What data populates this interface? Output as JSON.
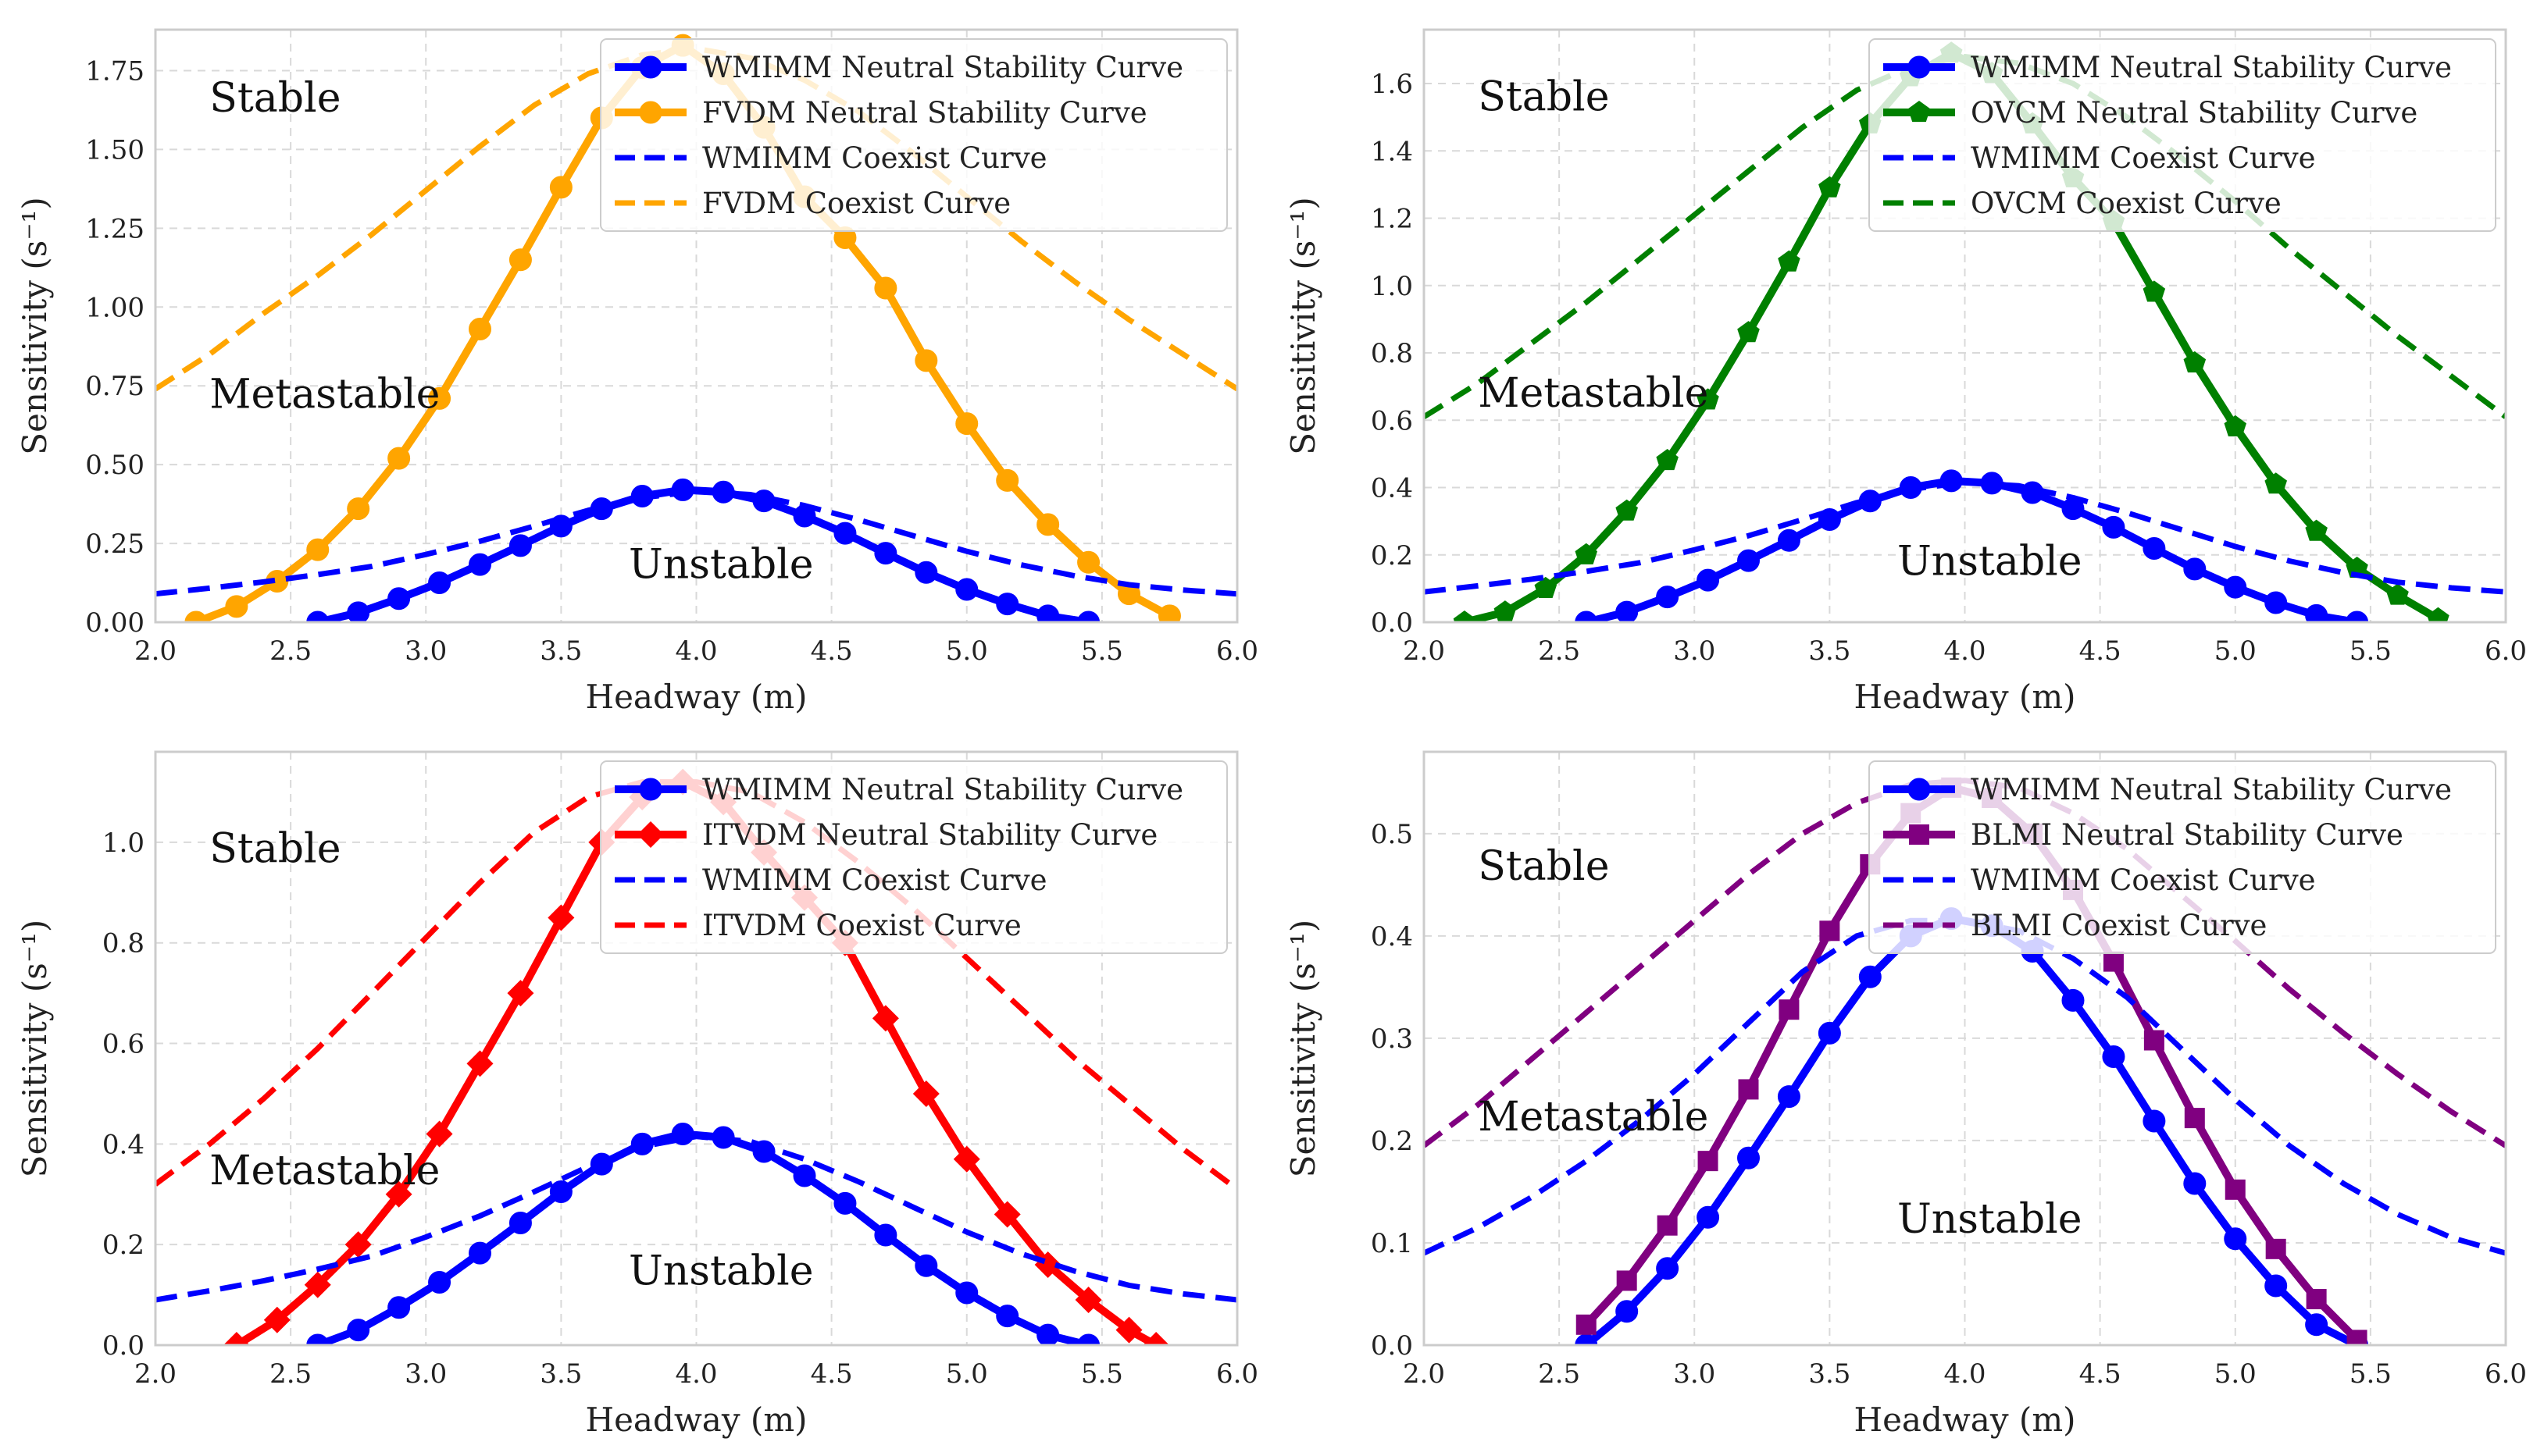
{
  "colors": {
    "wmimm": "#0000ff",
    "fvdm": "#ffa500",
    "ovcm": "#008000",
    "itvdm": "#ff0000",
    "blmi": "#800080",
    "grid": "#d9d9d9",
    "spine": "#cccccc"
  },
  "chart_data": [
    {
      "type": "line",
      "xlabel": "Headway (m)",
      "ylabel": "Sensitivity (s⁻¹)",
      "xlim": [
        2.0,
        6.0
      ],
      "ylim": [
        0,
        1.88
      ],
      "xticks": [
        "2.0",
        "2.5",
        "3.0",
        "3.5",
        "4.0",
        "4.5",
        "5.0",
        "5.5",
        "6.0"
      ],
      "yticks": [
        "0.00",
        "0.25",
        "0.50",
        "0.75",
        "1.00",
        "1.25",
        "1.50",
        "1.75"
      ],
      "region_labels": [
        "Stable",
        "Metastable",
        "Unstable"
      ],
      "series": [
        {
          "name": "WMIMM Neutral Stability Curve",
          "color": "wmimm",
          "style": "solid",
          "marker": "circle",
          "x": [
            2.6,
            2.75,
            2.9,
            3.05,
            3.2,
            3.35,
            3.5,
            3.65,
            3.8,
            3.95,
            4.1,
            4.25,
            4.4,
            4.55,
            4.7,
            4.85,
            5.0,
            5.15,
            5.3,
            5.45
          ],
          "y": [
            0.0,
            0.03,
            0.075,
            0.125,
            0.183,
            0.243,
            0.305,
            0.36,
            0.4,
            0.42,
            0.413,
            0.385,
            0.337,
            0.282,
            0.219,
            0.158,
            0.104,
            0.058,
            0.02,
            0.0
          ]
        },
        {
          "name": "FVDM Neutral Stability Curve",
          "color": "fvdm",
          "style": "solid",
          "marker": "circle",
          "x": [
            2.15,
            2.3,
            2.45,
            2.6,
            2.75,
            2.9,
            3.05,
            3.2,
            3.35,
            3.5,
            3.65,
            3.8,
            3.95,
            4.1,
            4.25,
            4.4,
            4.55,
            4.7,
            4.85,
            5.0,
            5.15,
            5.3,
            5.45,
            5.6,
            5.75
          ],
          "y": [
            0.0,
            0.05,
            0.13,
            0.23,
            0.36,
            0.52,
            0.71,
            0.93,
            1.15,
            1.38,
            1.6,
            1.76,
            1.83,
            1.74,
            1.57,
            1.35,
            1.22,
            1.06,
            0.83,
            0.63,
            0.45,
            0.31,
            0.19,
            0.09,
            0.02
          ]
        },
        {
          "name": "WMIMM Coexist Curve",
          "color": "wmimm",
          "style": "dashed",
          "marker": "none",
          "x": [
            2.0,
            2.2,
            2.4,
            2.6,
            2.8,
            3.0,
            3.2,
            3.4,
            3.6,
            3.8,
            4.0,
            4.2,
            4.4,
            4.6,
            4.8,
            5.0,
            5.2,
            5.4,
            5.6,
            5.8,
            6.0
          ],
          "y": [
            0.09,
            0.108,
            0.128,
            0.151,
            0.177,
            0.215,
            0.257,
            0.305,
            0.355,
            0.395,
            0.415,
            0.405,
            0.37,
            0.325,
            0.275,
            0.225,
            0.182,
            0.147,
            0.119,
            0.102,
            0.09
          ]
        },
        {
          "name": "FVDM Coexist Curve",
          "color": "fvdm",
          "style": "dashed",
          "marker": "none",
          "x": [
            2.0,
            2.2,
            2.4,
            2.6,
            2.8,
            3.0,
            3.2,
            3.4,
            3.6,
            3.8,
            4.0,
            4.2,
            4.4,
            4.6,
            4.8,
            5.0,
            5.2,
            5.4,
            5.6,
            5.8,
            6.0
          ],
          "y": [
            0.74,
            0.85,
            0.98,
            1.1,
            1.23,
            1.37,
            1.51,
            1.64,
            1.74,
            1.8,
            1.82,
            1.79,
            1.72,
            1.62,
            1.49,
            1.35,
            1.21,
            1.08,
            0.96,
            0.85,
            0.74
          ]
        }
      ]
    },
    {
      "type": "line",
      "xlabel": "Headway (m)",
      "ylabel": "Sensitivity (s⁻¹)",
      "xlim": [
        2.0,
        6.0
      ],
      "ylim": [
        0,
        1.76
      ],
      "xticks": [
        "2.0",
        "2.5",
        "3.0",
        "3.5",
        "4.0",
        "4.5",
        "5.0",
        "5.5",
        "6.0"
      ],
      "yticks": [
        "0.0",
        "0.2",
        "0.4",
        "0.6",
        "0.8",
        "1.0",
        "1.2",
        "1.4",
        "1.6"
      ],
      "region_labels": [
        "Stable",
        "Metastable",
        "Unstable"
      ],
      "series": [
        {
          "name": "WMIMM Neutral Stability Curve",
          "color": "wmimm",
          "style": "solid",
          "marker": "circle",
          "x": [
            2.6,
            2.75,
            2.9,
            3.05,
            3.2,
            3.35,
            3.5,
            3.65,
            3.8,
            3.95,
            4.1,
            4.25,
            4.4,
            4.55,
            4.7,
            4.85,
            5.0,
            5.15,
            5.3,
            5.45
          ],
          "y": [
            0.0,
            0.03,
            0.075,
            0.125,
            0.183,
            0.243,
            0.305,
            0.36,
            0.4,
            0.42,
            0.413,
            0.385,
            0.337,
            0.282,
            0.219,
            0.158,
            0.104,
            0.058,
            0.02,
            0.0
          ]
        },
        {
          "name": "OVCM Neutral Stability Curve",
          "color": "ovcm",
          "style": "solid",
          "marker": "pentagon",
          "x": [
            2.15,
            2.3,
            2.45,
            2.6,
            2.75,
            2.9,
            3.05,
            3.2,
            3.35,
            3.5,
            3.65,
            3.8,
            3.95,
            4.1,
            4.25,
            4.4,
            4.55,
            4.7,
            4.85,
            5.0,
            5.15,
            5.3,
            5.45,
            5.6,
            5.75
          ],
          "y": [
            0.0,
            0.03,
            0.1,
            0.2,
            0.33,
            0.48,
            0.66,
            0.86,
            1.07,
            1.29,
            1.48,
            1.62,
            1.69,
            1.63,
            1.48,
            1.32,
            1.19,
            0.98,
            0.77,
            0.58,
            0.41,
            0.27,
            0.16,
            0.08,
            0.01
          ]
        },
        {
          "name": "WMIMM Coexist Curve",
          "color": "wmimm",
          "style": "dashed",
          "marker": "none",
          "x": [
            2.0,
            2.2,
            2.4,
            2.6,
            2.8,
            3.0,
            3.2,
            3.4,
            3.6,
            3.8,
            4.0,
            4.2,
            4.4,
            4.6,
            4.8,
            5.0,
            5.2,
            5.4,
            5.6,
            5.8,
            6.0
          ],
          "y": [
            0.09,
            0.108,
            0.128,
            0.151,
            0.177,
            0.215,
            0.257,
            0.305,
            0.355,
            0.395,
            0.415,
            0.405,
            0.37,
            0.325,
            0.275,
            0.225,
            0.182,
            0.147,
            0.119,
            0.102,
            0.09
          ]
        },
        {
          "name": "OVCM Coexist Curve",
          "color": "ovcm",
          "style": "dashed",
          "marker": "none",
          "x": [
            2.0,
            2.2,
            2.4,
            2.6,
            2.8,
            3.0,
            3.2,
            3.4,
            3.6,
            3.8,
            4.0,
            4.2,
            4.4,
            4.6,
            4.8,
            5.0,
            5.2,
            5.4,
            5.6,
            5.8,
            6.0
          ],
          "y": [
            0.61,
            0.71,
            0.83,
            0.95,
            1.08,
            1.21,
            1.34,
            1.47,
            1.58,
            1.65,
            1.68,
            1.66,
            1.6,
            1.5,
            1.38,
            1.25,
            1.11,
            0.98,
            0.85,
            0.73,
            0.61
          ]
        }
      ]
    },
    {
      "type": "line",
      "xlabel": "Headway (m)",
      "ylabel": "Sensitivity (s⁻¹)",
      "xlim": [
        2.0,
        6.0
      ],
      "ylim": [
        0,
        1.18
      ],
      "xticks": [
        "2.0",
        "2.5",
        "3.0",
        "3.5",
        "4.0",
        "4.5",
        "5.0",
        "5.5",
        "6.0"
      ],
      "yticks": [
        "0.0",
        "0.2",
        "0.4",
        "0.6",
        "0.8",
        "1.0"
      ],
      "region_labels": [
        "Stable",
        "Metastable",
        "Unstable"
      ],
      "series": [
        {
          "name": "WMIMM Neutral Stability Curve",
          "color": "wmimm",
          "style": "solid",
          "marker": "circle",
          "x": [
            2.6,
            2.75,
            2.9,
            3.05,
            3.2,
            3.35,
            3.5,
            3.65,
            3.8,
            3.95,
            4.1,
            4.25,
            4.4,
            4.55,
            4.7,
            4.85,
            5.0,
            5.15,
            5.3,
            5.45
          ],
          "y": [
            0.0,
            0.03,
            0.075,
            0.125,
            0.183,
            0.243,
            0.305,
            0.36,
            0.4,
            0.42,
            0.413,
            0.385,
            0.337,
            0.282,
            0.219,
            0.158,
            0.104,
            0.058,
            0.02,
            0.0
          ]
        },
        {
          "name": "ITVDM Neutral Stability Curve",
          "color": "itvdm",
          "style": "solid",
          "marker": "diamond",
          "x": [
            2.3,
            2.45,
            2.6,
            2.75,
            2.9,
            3.05,
            3.2,
            3.35,
            3.5,
            3.65,
            3.8,
            3.95,
            4.1,
            4.25,
            4.4,
            4.55,
            4.7,
            4.85,
            5.0,
            5.15,
            5.3,
            5.45,
            5.6,
            5.7
          ],
          "y": [
            0.0,
            0.05,
            0.12,
            0.2,
            0.3,
            0.42,
            0.56,
            0.7,
            0.85,
            1.0,
            1.09,
            1.12,
            1.08,
            0.98,
            0.89,
            0.8,
            0.65,
            0.5,
            0.37,
            0.26,
            0.16,
            0.09,
            0.03,
            0.0
          ]
        },
        {
          "name": "WMIMM Coexist Curve",
          "color": "wmimm",
          "style": "dashed",
          "marker": "none",
          "x": [
            2.0,
            2.2,
            2.4,
            2.6,
            2.8,
            3.0,
            3.2,
            3.4,
            3.6,
            3.8,
            4.0,
            4.2,
            4.4,
            4.6,
            4.8,
            5.0,
            5.2,
            5.4,
            5.6,
            5.8,
            6.0
          ],
          "y": [
            0.09,
            0.108,
            0.128,
            0.151,
            0.177,
            0.215,
            0.257,
            0.305,
            0.355,
            0.395,
            0.415,
            0.405,
            0.37,
            0.325,
            0.275,
            0.225,
            0.182,
            0.147,
            0.119,
            0.102,
            0.09
          ]
        },
        {
          "name": "ITVDM Coexist Curve",
          "color": "itvdm",
          "style": "dashed",
          "marker": "none",
          "x": [
            2.0,
            2.2,
            2.4,
            2.6,
            2.8,
            3.0,
            3.2,
            3.4,
            3.6,
            3.8,
            4.0,
            4.2,
            4.4,
            4.6,
            4.8,
            5.0,
            5.2,
            5.4,
            5.6,
            5.8,
            6.0
          ],
          "y": [
            0.32,
            0.4,
            0.49,
            0.59,
            0.7,
            0.81,
            0.92,
            1.02,
            1.09,
            1.12,
            1.12,
            1.1,
            1.04,
            0.96,
            0.87,
            0.77,
            0.67,
            0.57,
            0.48,
            0.39,
            0.31
          ]
        }
      ]
    },
    {
      "type": "line",
      "xlabel": "Headway (m)",
      "ylabel": "Sensitivity (s⁻¹)",
      "xlim": [
        2.0,
        6.0
      ],
      "ylim": [
        0,
        0.58
      ],
      "xticks": [
        "2.0",
        "2.5",
        "3.0",
        "3.5",
        "4.0",
        "4.5",
        "5.0",
        "5.5",
        "6.0"
      ],
      "yticks": [
        "0.0",
        "0.1",
        "0.2",
        "0.3",
        "0.4",
        "0.5"
      ],
      "region_labels": [
        "Stable",
        "Metastable",
        "Unstable"
      ],
      "series": [
        {
          "name": "WMIMM Neutral Stability Curve",
          "color": "wmimm",
          "style": "solid",
          "marker": "circle",
          "x": [
            2.6,
            2.75,
            2.9,
            3.05,
            3.2,
            3.35,
            3.5,
            3.65,
            3.8,
            3.95,
            4.1,
            4.25,
            4.4,
            4.55,
            4.7,
            4.85,
            5.0,
            5.15,
            5.3,
            5.45
          ],
          "y": [
            0.0,
            0.033,
            0.075,
            0.125,
            0.183,
            0.243,
            0.305,
            0.36,
            0.4,
            0.417,
            0.41,
            0.385,
            0.337,
            0.282,
            0.219,
            0.158,
            0.104,
            0.058,
            0.02,
            0.0
          ]
        },
        {
          "name": "BLMI Neutral Stability Curve",
          "color": "blmi",
          "style": "solid",
          "marker": "square",
          "x": [
            2.6,
            2.75,
            2.9,
            3.05,
            3.2,
            3.35,
            3.5,
            3.65,
            3.8,
            3.95,
            4.1,
            4.25,
            4.4,
            4.55,
            4.7,
            4.85,
            5.0,
            5.15,
            5.3,
            5.45
          ],
          "y": [
            0.02,
            0.063,
            0.117,
            0.18,
            0.25,
            0.328,
            0.405,
            0.47,
            0.52,
            0.545,
            0.535,
            0.5,
            0.445,
            0.375,
            0.298,
            0.222,
            0.152,
            0.094,
            0.045,
            0.005
          ]
        },
        {
          "name": "WMIMM Coexist Curve",
          "color": "wmimm",
          "style": "dashed",
          "marker": "none",
          "x": [
            2.0,
            2.2,
            2.4,
            2.6,
            2.8,
            3.0,
            3.2,
            3.4,
            3.6,
            3.8,
            4.0,
            4.2,
            4.4,
            4.6,
            4.8,
            5.0,
            5.2,
            5.4,
            5.6,
            5.8,
            6.0
          ],
          "y": [
            0.09,
            0.115,
            0.145,
            0.18,
            0.22,
            0.265,
            0.315,
            0.365,
            0.4,
            0.415,
            0.415,
            0.405,
            0.378,
            0.34,
            0.29,
            0.24,
            0.195,
            0.158,
            0.128,
            0.105,
            0.09
          ]
        },
        {
          "name": "BLMI Coexist Curve",
          "color": "blmi",
          "style": "dashed",
          "marker": "none",
          "x": [
            2.0,
            2.2,
            2.4,
            2.6,
            2.8,
            3.0,
            3.2,
            3.4,
            3.6,
            3.8,
            4.0,
            4.2,
            4.4,
            4.6,
            4.8,
            5.0,
            5.2,
            5.4,
            5.6,
            5.8,
            6.0
          ],
          "y": [
            0.195,
            0.235,
            0.28,
            0.325,
            0.37,
            0.415,
            0.46,
            0.5,
            0.53,
            0.548,
            0.552,
            0.545,
            0.52,
            0.485,
            0.44,
            0.395,
            0.348,
            0.305,
            0.265,
            0.228,
            0.195
          ]
        }
      ]
    }
  ]
}
